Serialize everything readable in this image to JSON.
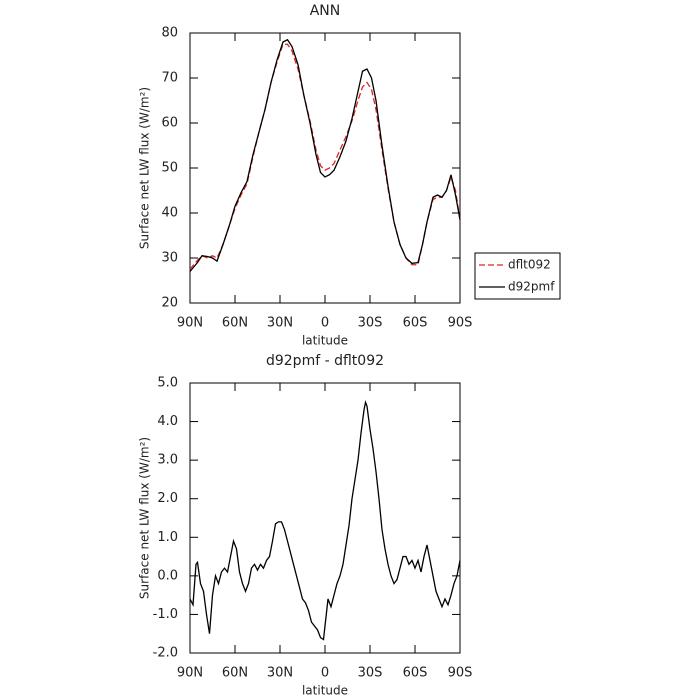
{
  "chart_data": [
    {
      "type": "line",
      "title": "ANN",
      "xlabel": "latitude",
      "ylabel": "Surface net LW flux (W/m²)",
      "xlim": [
        90,
        -90
      ],
      "xticks": [
        {
          "value": 90,
          "label": "90N"
        },
        {
          "value": 60,
          "label": "60N"
        },
        {
          "value": 30,
          "label": "30N"
        },
        0,
        {
          "value": -30,
          "label": "30S"
        },
        {
          "value": -60,
          "label": "60S"
        },
        {
          "value": -90,
          "label": "90S"
        }
      ],
      "ylim": [
        20,
        80
      ],
      "yticks": [
        20,
        30,
        40,
        50,
        60,
        70,
        80
      ],
      "legend": "right",
      "x": [
        90,
        85,
        82,
        78,
        75,
        72,
        68,
        64,
        60,
        56,
        52,
        48,
        44,
        40,
        36,
        32,
        28,
        25,
        22,
        18,
        14,
        10,
        6,
        3,
        0,
        -3,
        -6,
        -10,
        -14,
        -18,
        -22,
        -25,
        -28,
        -31,
        -34,
        -38,
        -42,
        -46,
        -50,
        -54,
        -58,
        -62,
        -65,
        -68,
        -72,
        -75,
        -78,
        -81,
        -84,
        -87,
        -90
      ],
      "series": [
        {
          "name": "dflt092",
          "color": "#e02020",
          "dash": true,
          "values": [
            27.5,
            29.5,
            30.5,
            30,
            30.5,
            30,
            33,
            37,
            41,
            44,
            46.5,
            52.5,
            58,
            63,
            69,
            73.5,
            77.5,
            77.5,
            76,
            72,
            66,
            60.5,
            54,
            50.5,
            49.5,
            50,
            51,
            54,
            57,
            60.5,
            65,
            68,
            69,
            67.5,
            63,
            54,
            45.5,
            38,
            33,
            30,
            28.5,
            28.5,
            33,
            38,
            43,
            43.5,
            43.5,
            45,
            48,
            45,
            38.5
          ]
        },
        {
          "name": "d92pmf",
          "color": "#000000",
          "dash": false,
          "values": [
            27,
            29,
            30.5,
            30.3,
            30,
            29.3,
            33,
            37,
            41.5,
            44.5,
            47,
            53,
            58,
            63,
            69,
            74,
            78,
            78.5,
            77,
            73,
            66,
            60,
            53,
            49,
            48,
            48.5,
            49.5,
            52.5,
            56,
            61,
            67,
            71.5,
            72,
            70,
            65,
            55,
            46,
            38,
            33,
            30,
            28.8,
            29,
            33,
            38,
            43.5,
            44,
            43.5,
            45,
            48.5,
            44,
            38.5
          ]
        }
      ]
    },
    {
      "type": "line",
      "title": "d92pmf - dflt092",
      "xlabel": "latitude",
      "ylabel": "Surface net LW flux (W/m²)",
      "xlim": [
        90,
        -90
      ],
      "xticks": [
        {
          "value": 90,
          "label": "90N"
        },
        {
          "value": 60,
          "label": "60N"
        },
        {
          "value": 30,
          "label": "30N"
        },
        0,
        {
          "value": -30,
          "label": "30S"
        },
        {
          "value": -60,
          "label": "60S"
        },
        {
          "value": -90,
          "label": "90S"
        }
      ],
      "ylim": [
        -2,
        5
      ],
      "yticks": [
        {
          "value": -2,
          "label": "-2.0"
        },
        {
          "value": -1,
          "label": "-1.0"
        },
        {
          "value": 0,
          "label": "0.0"
        },
        {
          "value": 1,
          "label": "1.0"
        },
        {
          "value": 2,
          "label": "2.0"
        },
        {
          "value": 3,
          "label": "3.0"
        },
        {
          "value": 4,
          "label": "4.0"
        },
        {
          "value": 5,
          "label": "5.0"
        }
      ],
      "x": [
        90,
        88,
        86,
        85,
        83,
        81,
        79,
        77,
        75,
        73,
        71,
        69,
        67,
        65,
        63,
        61,
        59,
        57,
        55,
        53,
        51,
        49,
        47,
        45,
        43,
        41,
        39,
        37,
        35,
        33,
        31,
        29,
        27,
        25,
        23,
        21,
        19,
        17,
        15,
        13,
        11,
        9,
        7,
        5,
        3,
        1,
        0,
        -2,
        -4,
        -6,
        -8,
        -10,
        -12,
        -14,
        -16,
        -18,
        -20,
        -22,
        -24,
        -26,
        -27,
        -28,
        -30,
        -32,
        -34,
        -36,
        -38,
        -40,
        -42,
        -44,
        -46,
        -48,
        -50,
        -52,
        -54,
        -56,
        -58,
        -60,
        -62,
        -64,
        -66,
        -68,
        -70,
        -72,
        -74,
        -76,
        -78,
        -80,
        -82,
        -84,
        -86,
        -88,
        -90
      ],
      "series": [
        {
          "name": "d92pmf - dflt092",
          "color": "#000000",
          "dash": false,
          "values": [
            -0.6,
            -0.75,
            0.3,
            0.35,
            -0.2,
            -0.4,
            -1.0,
            -1.5,
            -0.5,
            0.0,
            -0.2,
            0.1,
            0.2,
            0.1,
            0.5,
            0.9,
            0.7,
            0.1,
            -0.2,
            -0.4,
            -0.2,
            0.2,
            0.3,
            0.15,
            0.3,
            0.2,
            0.4,
            0.5,
            0.9,
            1.35,
            1.4,
            1.4,
            1.2,
            0.9,
            0.6,
            0.3,
            0.0,
            -0.3,
            -0.6,
            -0.7,
            -0.9,
            -1.2,
            -1.3,
            -1.4,
            -1.6,
            -1.65,
            -1.3,
            -0.6,
            -0.8,
            -0.5,
            -0.2,
            0.0,
            0.3,
            0.8,
            1.3,
            2.0,
            2.5,
            3.0,
            3.7,
            4.3,
            4.5,
            4.4,
            3.8,
            3.3,
            2.7,
            2.0,
            1.2,
            0.7,
            0.3,
            0.0,
            -0.2,
            -0.1,
            0.2,
            0.5,
            0.5,
            0.3,
            0.4,
            0.2,
            0.4,
            0.1,
            0.5,
            0.8,
            0.4,
            0.0,
            -0.4,
            -0.6,
            -0.8,
            -0.6,
            -0.75,
            -0.5,
            -0.2,
            0.0,
            0.4
          ]
        }
      ]
    }
  ]
}
